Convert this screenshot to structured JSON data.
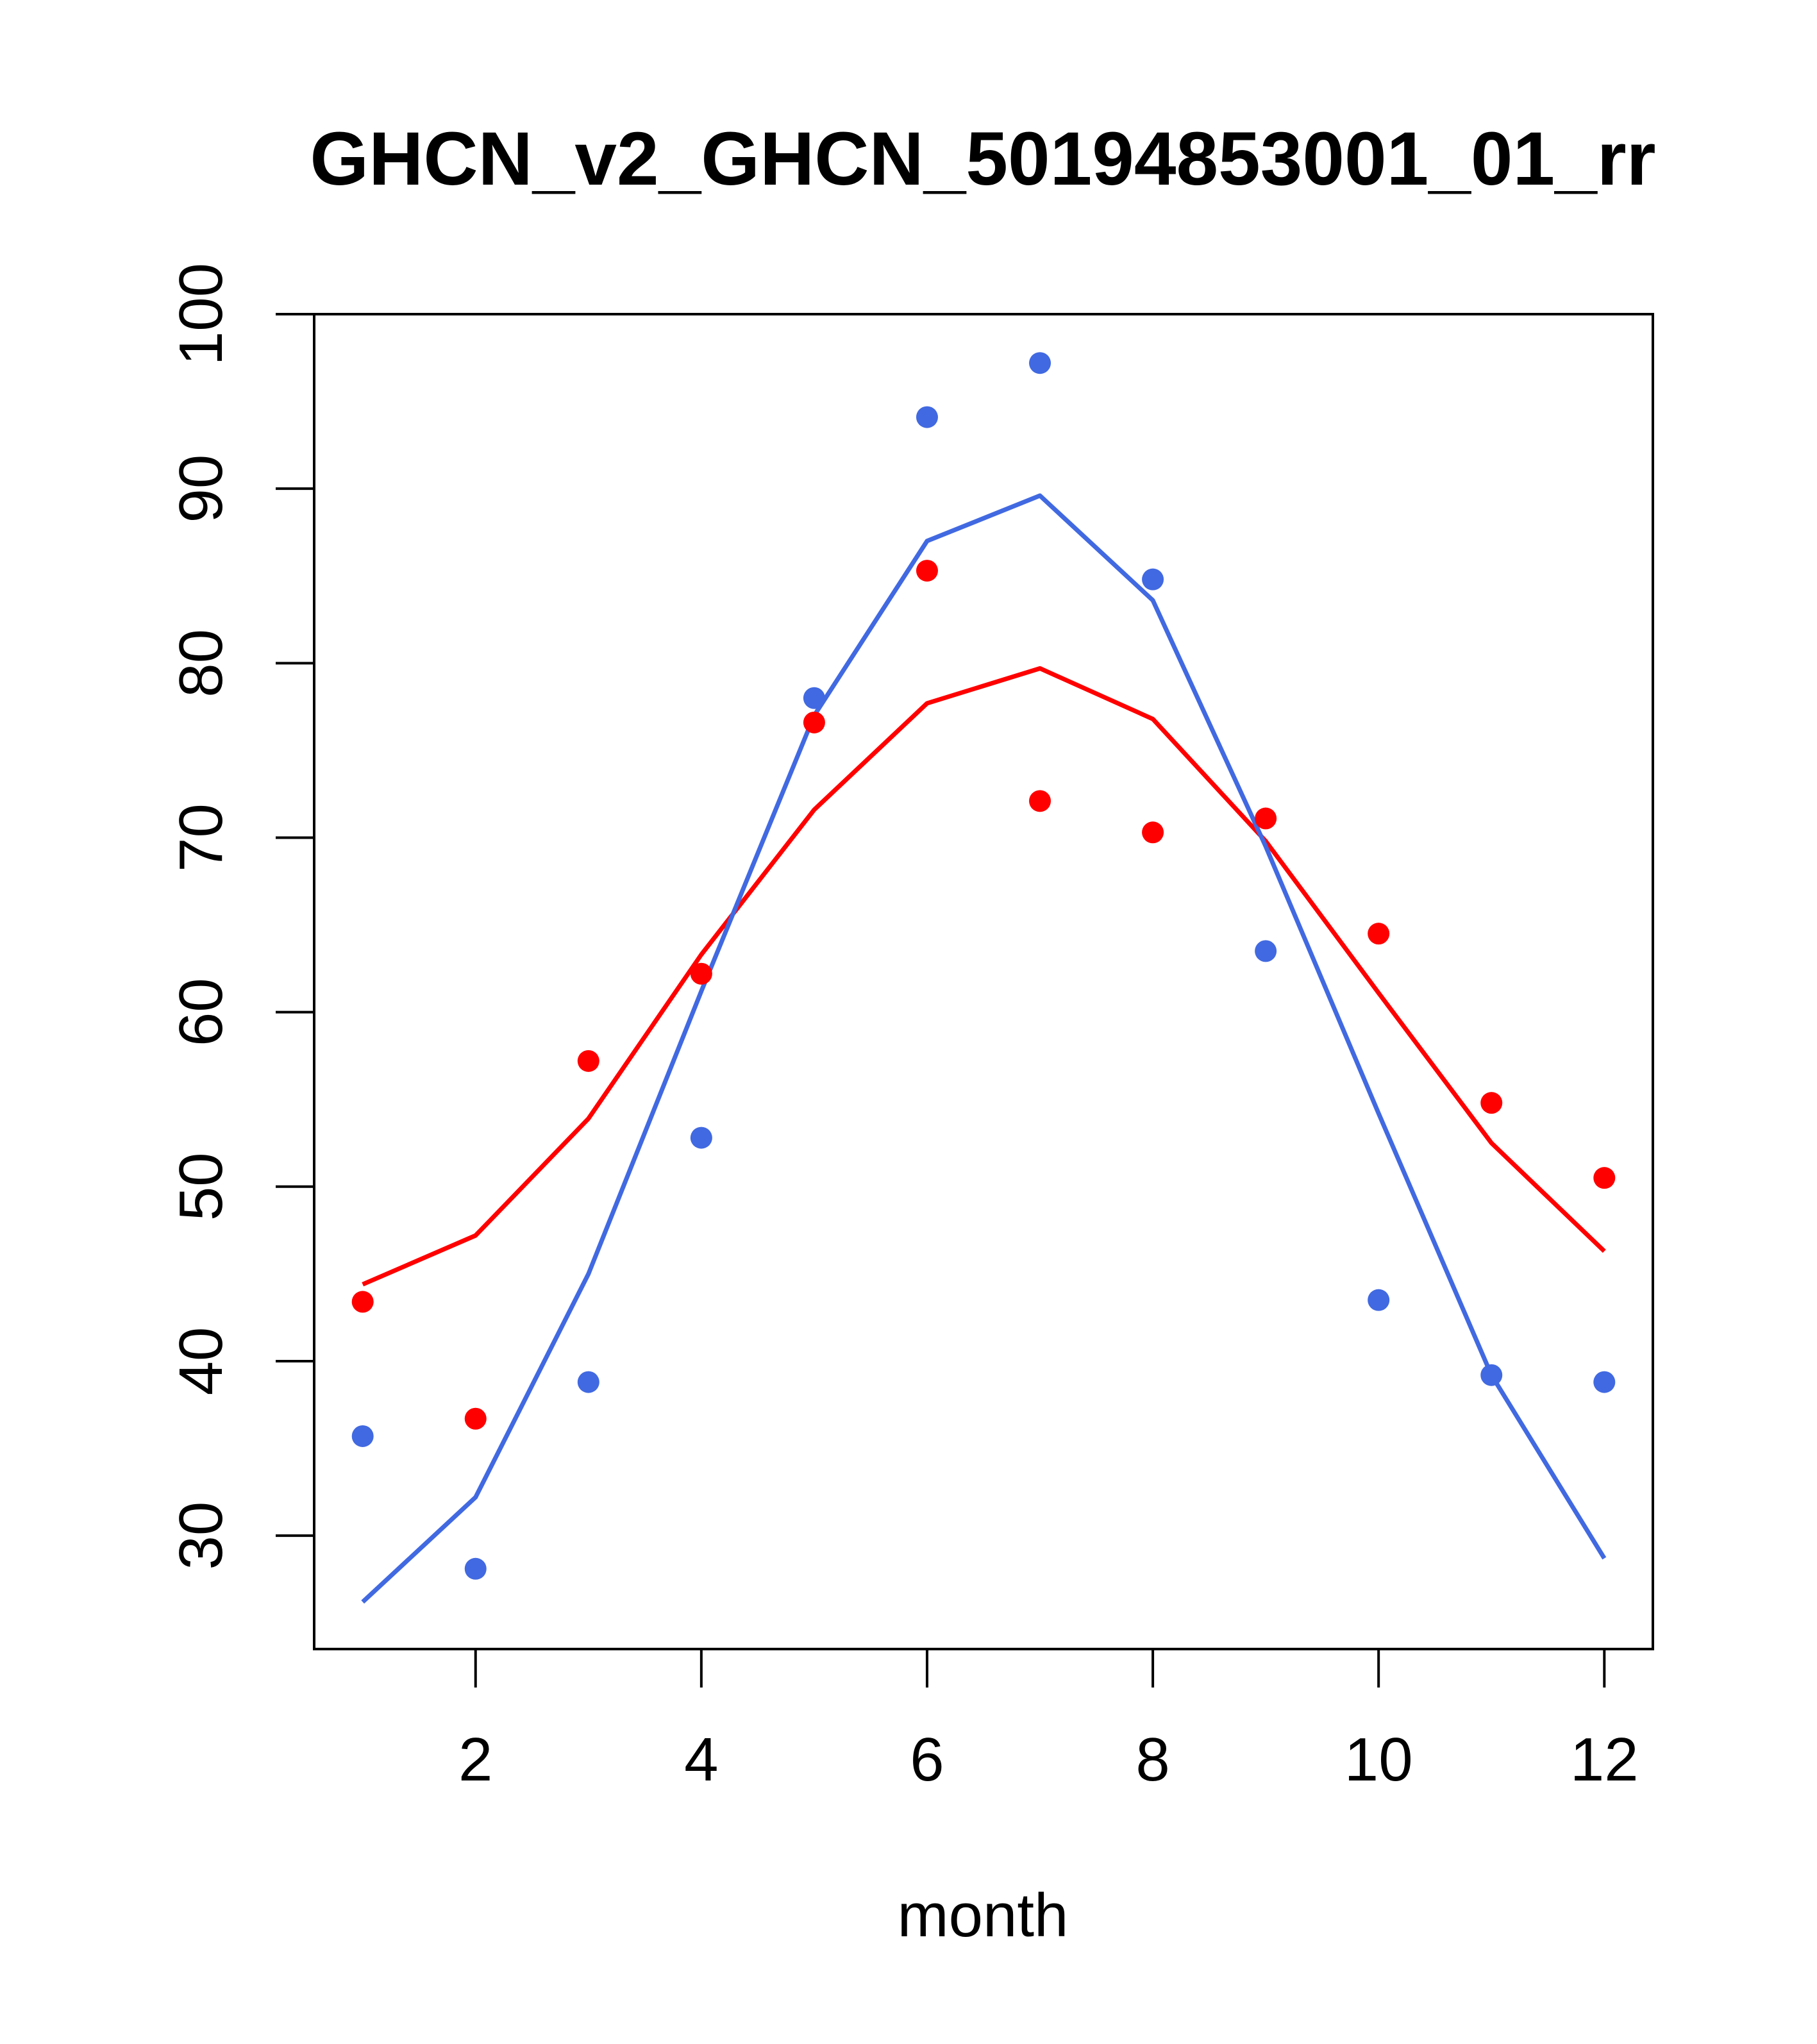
{
  "chart_data": {
    "type": "line",
    "title": "GHCN_v2_GHCN_50194853001_01_rr",
    "xlabel": "month",
    "ylabel": "",
    "xlim": [
      0.57,
      12.43
    ],
    "ylim": [
      23.5,
      100
    ],
    "x_ticks": [
      2,
      4,
      6,
      8,
      10,
      12
    ],
    "y_ticks": [
      30,
      40,
      50,
      60,
      70,
      80,
      90,
      100
    ],
    "grid": false,
    "x": [
      1,
      2,
      3,
      4,
      5,
      6,
      7,
      8,
      9,
      10,
      11,
      12
    ],
    "series": [
      {
        "name": "red points",
        "kind": "points",
        "color": "#ff0000",
        "values": [
          43.4,
          36.7,
          57.2,
          62.2,
          76.6,
          85.3,
          72.1,
          70.3,
          71.1,
          64.5,
          54.8,
          50.5
        ]
      },
      {
        "name": "red fit",
        "kind": "line",
        "color": "#ff0000",
        "values": [
          44.4,
          47.2,
          53.9,
          63.3,
          71.6,
          77.7,
          79.7,
          76.8,
          69.8,
          61.1,
          52.5,
          46.3
        ]
      },
      {
        "name": "blue points",
        "kind": "points",
        "color": "#4169e1",
        "values": [
          35.7,
          28.1,
          38.8,
          52.8,
          78.0,
          94.1,
          97.2,
          84.8,
          63.5,
          43.5,
          39.2,
          38.8
        ]
      },
      {
        "name": "blue fit",
        "kind": "line",
        "color": "#4169e1",
        "values": [
          26.2,
          32.2,
          45.0,
          61.2,
          77.0,
          87.0,
          89.6,
          83.6,
          69.5,
          54.2,
          39.2,
          28.7
        ]
      }
    ]
  }
}
